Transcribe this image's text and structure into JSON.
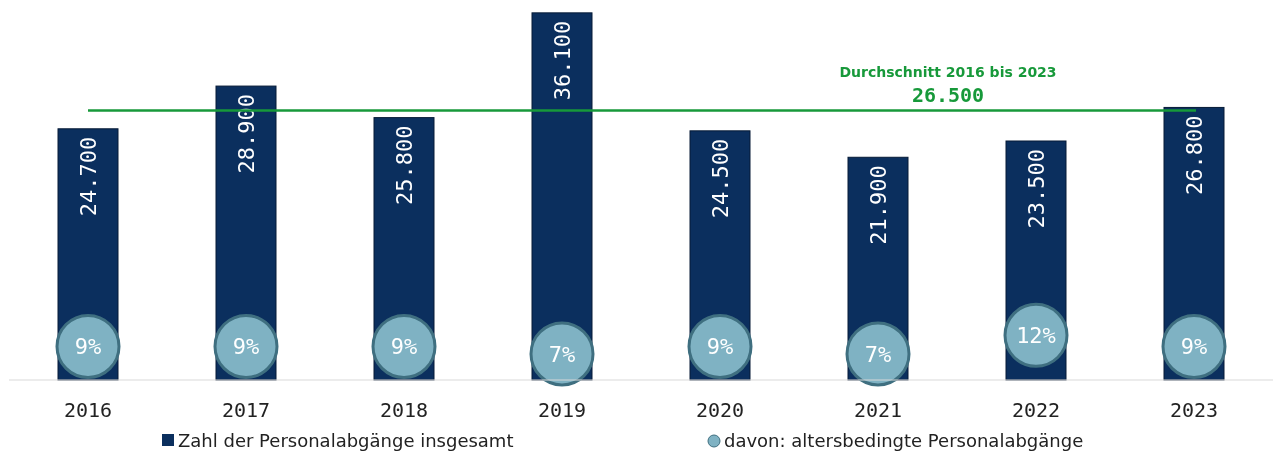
{
  "chart_data": {
    "type": "bar",
    "categories": [
      "2016",
      "2017",
      "2018",
      "2019",
      "2020",
      "2021",
      "2022",
      "2023"
    ],
    "series": [
      {
        "name": "Zahl der Personalabgänge insgesamt",
        "color": "#0b2f5e",
        "values": [
          24700,
          28900,
          25800,
          36100,
          24500,
          21900,
          23500,
          26800
        ],
        "value_labels": [
          "24.700",
          "28.900",
          "25.800",
          "36.100",
          "24.500",
          "21.900",
          "23.500",
          "26.800"
        ]
      },
      {
        "name": "davon: altersbedingte Personalabgänge",
        "type": "scatter",
        "axis": "y2",
        "color": "#7fb2c3",
        "values": [
          9,
          9,
          9,
          7,
          9,
          7,
          12,
          9
        ],
        "value_labels": [
          "9%",
          "9%",
          "9%",
          "7%",
          "9%",
          "7%",
          "12%",
          "9%"
        ]
      }
    ],
    "ref_lines": [
      {
        "axis": "y",
        "value": 26500,
        "label": "26.500",
        "color": "#17993a"
      }
    ],
    "annotations": [
      "Durchschnitt 2016 bis 2023"
    ],
    "legend": "bottom",
    "grid": false,
    "tick_labels": "x"
  }
}
